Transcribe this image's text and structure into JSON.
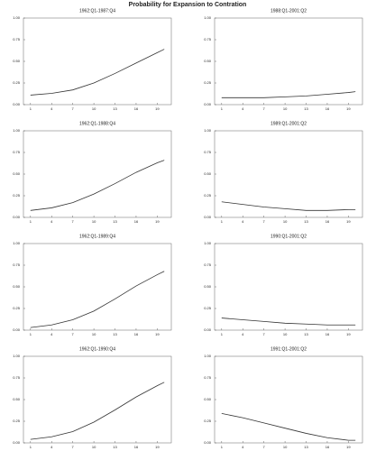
{
  "title": "Probability for Expansion to Contration",
  "chart_data": [
    {
      "type": "line",
      "title": "1962:Q1-1987:Q4",
      "x": [
        1,
        4,
        7,
        10,
        13,
        16,
        19,
        20
      ],
      "values": [
        0.11,
        0.13,
        0.17,
        0.25,
        0.36,
        0.48,
        0.6,
        0.64
      ],
      "color": "#333333",
      "xlim": [
        0,
        21
      ],
      "ylim": [
        0,
        1
      ],
      "xticks": [
        1,
        4,
        7,
        10,
        13,
        16,
        19
      ],
      "yticks": [
        {
          "value": 0,
          "label": "0.00"
        },
        {
          "value": 0.25,
          "label": "0.25"
        },
        {
          "value": 0.5,
          "label": "0.50"
        },
        {
          "value": 0.75,
          "label": "0.75"
        },
        {
          "value": 1,
          "label": "1.00"
        }
      ]
    },
    {
      "type": "line",
      "title": "1988:Q1-2001:Q2",
      "x": [
        1,
        4,
        7,
        10,
        13,
        16,
        19,
        20
      ],
      "values": [
        0.08,
        0.08,
        0.08,
        0.09,
        0.1,
        0.12,
        0.14,
        0.15
      ],
      "color": "#333333",
      "xlim": [
        0,
        21
      ],
      "ylim": [
        0,
        1
      ],
      "xticks": [
        1,
        4,
        7,
        10,
        13,
        16,
        19
      ],
      "yticks": [
        {
          "value": 0,
          "label": "0.00"
        },
        {
          "value": 0.25,
          "label": "0.25"
        },
        {
          "value": 0.5,
          "label": "0.50"
        },
        {
          "value": 0.75,
          "label": "0.75"
        },
        {
          "value": 1,
          "label": "1.00"
        }
      ]
    },
    {
      "type": "line",
      "title": "1962:Q1-1988:Q4",
      "x": [
        1,
        4,
        7,
        10,
        13,
        16,
        19,
        20
      ],
      "values": [
        0.08,
        0.11,
        0.17,
        0.27,
        0.39,
        0.52,
        0.63,
        0.66
      ],
      "color": "#333333",
      "xlim": [
        0,
        21
      ],
      "ylim": [
        0,
        1
      ],
      "xticks": [
        1,
        4,
        7,
        10,
        13,
        16,
        19
      ],
      "yticks": [
        {
          "value": 0,
          "label": "0.00"
        },
        {
          "value": 0.25,
          "label": "0.25"
        },
        {
          "value": 0.5,
          "label": "0.50"
        },
        {
          "value": 0.75,
          "label": "0.75"
        },
        {
          "value": 1,
          "label": "1.00"
        }
      ]
    },
    {
      "type": "line",
      "title": "1989:Q1-2001:Q2",
      "x": [
        1,
        4,
        7,
        10,
        13,
        16,
        19,
        20
      ],
      "values": [
        0.18,
        0.15,
        0.12,
        0.1,
        0.08,
        0.08,
        0.09,
        0.09
      ],
      "color": "#333333",
      "xlim": [
        0,
        21
      ],
      "ylim": [
        0,
        1
      ],
      "xticks": [
        1,
        4,
        7,
        10,
        13,
        16,
        19
      ],
      "yticks": [
        {
          "value": 0,
          "label": "0.00"
        },
        {
          "value": 0.25,
          "label": "0.25"
        },
        {
          "value": 0.5,
          "label": "0.50"
        },
        {
          "value": 0.75,
          "label": "0.75"
        },
        {
          "value": 1,
          "label": "1.00"
        }
      ]
    },
    {
      "type": "line",
      "title": "1962:Q1-1989:Q4",
      "x": [
        1,
        4,
        7,
        10,
        13,
        16,
        19,
        20
      ],
      "values": [
        0.03,
        0.06,
        0.12,
        0.22,
        0.36,
        0.51,
        0.64,
        0.68
      ],
      "color": "#333333",
      "xlim": [
        0,
        21
      ],
      "ylim": [
        0,
        1
      ],
      "xticks": [
        1,
        4,
        7,
        10,
        13,
        16,
        19
      ],
      "yticks": [
        {
          "value": 0,
          "label": "0.00"
        },
        {
          "value": 0.25,
          "label": "0.25"
        },
        {
          "value": 0.5,
          "label": "0.50"
        },
        {
          "value": 0.75,
          "label": "0.75"
        },
        {
          "value": 1,
          "label": "1.00"
        }
      ]
    },
    {
      "type": "line",
      "title": "1990:Q1-2001:Q2",
      "x": [
        1,
        4,
        7,
        10,
        13,
        16,
        19,
        20
      ],
      "values": [
        0.14,
        0.12,
        0.1,
        0.08,
        0.07,
        0.06,
        0.06,
        0.06
      ],
      "color": "#333333",
      "xlim": [
        0,
        21
      ],
      "ylim": [
        0,
        1
      ],
      "xticks": [
        1,
        4,
        7,
        10,
        13,
        16,
        19
      ],
      "yticks": [
        {
          "value": 0,
          "label": "0.00"
        },
        {
          "value": 0.25,
          "label": "0.25"
        },
        {
          "value": 0.5,
          "label": "0.50"
        },
        {
          "value": 0.75,
          "label": "0.75"
        },
        {
          "value": 1,
          "label": "1.00"
        }
      ]
    },
    {
      "type": "line",
      "title": "1962:Q1-1990:Q4",
      "x": [
        1,
        4,
        7,
        10,
        13,
        16,
        19,
        20
      ],
      "values": [
        0.04,
        0.07,
        0.13,
        0.24,
        0.38,
        0.53,
        0.66,
        0.7
      ],
      "color": "#333333",
      "xlim": [
        0,
        21
      ],
      "ylim": [
        0,
        1
      ],
      "xticks": [
        1,
        4,
        7,
        10,
        13,
        16,
        19
      ],
      "yticks": [
        {
          "value": 0,
          "label": "0.00"
        },
        {
          "value": 0.25,
          "label": "0.25"
        },
        {
          "value": 0.5,
          "label": "0.50"
        },
        {
          "value": 0.75,
          "label": "0.75"
        },
        {
          "value": 1,
          "label": "1.00"
        }
      ]
    },
    {
      "type": "line",
      "title": "1991:Q1-2001:Q2",
      "x": [
        1,
        4,
        7,
        10,
        13,
        16,
        19,
        20
      ],
      "values": [
        0.34,
        0.29,
        0.23,
        0.17,
        0.11,
        0.06,
        0.03,
        0.03
      ],
      "color": "#333333",
      "xlim": [
        0,
        21
      ],
      "ylim": [
        0,
        1
      ],
      "xticks": [
        1,
        4,
        7,
        10,
        13,
        16,
        19
      ],
      "yticks": [
        {
          "value": 0,
          "label": "0.00"
        },
        {
          "value": 0.25,
          "label": "0.25"
        },
        {
          "value": 0.5,
          "label": "0.50"
        },
        {
          "value": 0.75,
          "label": "0.75"
        },
        {
          "value": 1,
          "label": "1.00"
        }
      ]
    }
  ]
}
